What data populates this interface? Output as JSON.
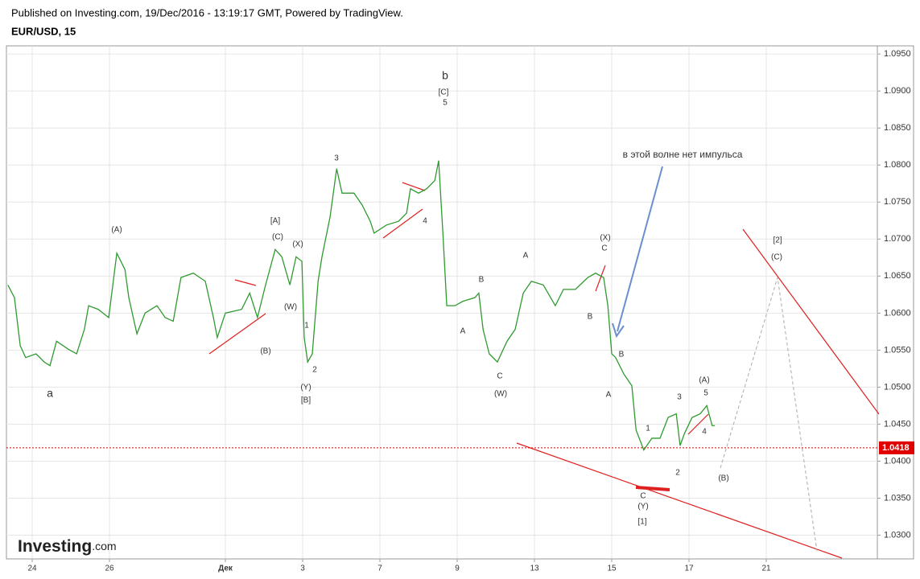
{
  "header": {
    "published": "Published on Investing.com, 19/Dec/2016 - 13:19:17 GMT, Powered by TradingView.",
    "symbol": "EUR/USD, 15"
  },
  "logo": {
    "brand": "Investing",
    "suffix": ".com"
  },
  "chart_data": {
    "type": "line",
    "series": [
      {
        "color": "#2f9a2f",
        "x": [
          -0.63,
          -0.46,
          -0.31,
          -0.17,
          0.1,
          0.31,
          0.46,
          0.63,
          0.94,
          1.15,
          1.35,
          1.46,
          1.71,
          1.98,
          2.19,
          2.4,
          2.5,
          2.71,
          2.92,
          3.23,
          3.44,
          3.65,
          3.85,
          4.17,
          4.48,
          4.69,
          4.79,
          5.0,
          5.42,
          5.63,
          5.83,
          6.04,
          6.29,
          6.46,
          6.67,
          6.83,
          6.98,
          7.04,
          7.13,
          7.25,
          7.4,
          7.5,
          7.71,
          7.88,
          8.02,
          8.33,
          8.54,
          8.75,
          8.85,
          9.17,
          9.48,
          9.69,
          9.79,
          10.0,
          10.21,
          10.42,
          10.52,
          10.63,
          10.73,
          10.94,
          11.15,
          11.46,
          11.56,
          11.67,
          11.83,
          12.04,
          12.29,
          12.5,
          12.71,
          12.92,
          13.23,
          13.54,
          13.75,
          14.06,
          14.38,
          14.58,
          14.79,
          14.9,
          15.0,
          15.1,
          15.31,
          15.52,
          15.63,
          15.83,
          16.04,
          16.25,
          16.46,
          16.67,
          16.77,
          16.88,
          17.08,
          17.29,
          17.46,
          17.6,
          17.67
        ],
        "values": [
          1.0638,
          1.0621,
          1.0556,
          1.054,
          1.0545,
          1.0534,
          1.0529,
          1.0562,
          1.0551,
          1.0545,
          1.0578,
          1.061,
          1.0605,
          1.0594,
          1.0681,
          1.0659,
          1.0621,
          1.0572,
          1.06,
          1.061,
          1.0594,
          1.0589,
          1.0648,
          1.0654,
          1.0643,
          1.0594,
          1.0567,
          1.06,
          1.0605,
          1.0627,
          1.0594,
          1.0638,
          1.0686,
          1.0676,
          1.0638,
          1.0676,
          1.067,
          1.0567,
          1.0534,
          1.0545,
          1.0643,
          1.0676,
          1.073,
          1.0795,
          1.0762,
          1.0762,
          1.0746,
          1.0724,
          1.0708,
          1.0719,
          1.0724,
          1.0735,
          1.0768,
          1.0762,
          1.0768,
          1.0779,
          1.0806,
          1.0708,
          1.061,
          1.061,
          1.0616,
          1.0621,
          1.0627,
          1.0578,
          1.0545,
          1.0534,
          1.0562,
          1.0578,
          1.0627,
          1.0643,
          1.0638,
          1.061,
          1.0632,
          1.0632,
          1.0648,
          1.0654,
          1.0648,
          1.061,
          1.0545,
          1.054,
          1.0518,
          1.0502,
          1.0442,
          1.0415,
          1.0431,
          1.0431,
          1.0459,
          1.0464,
          1.0421,
          1.0437,
          1.0459,
          1.0464,
          1.0475,
          1.0448,
          1.0448
        ]
      }
    ],
    "last_price": 1.0418,
    "last_price_color": "#e00000",
    "xlim": [
      -0.667,
      21.875
    ],
    "ylim": [
      1.0268,
      1.0961
    ],
    "xticks": [
      {
        "value": 0,
        "label": "24"
      },
      {
        "value": 2,
        "label": "26"
      },
      {
        "value": 5,
        "label": "Дек"
      },
      {
        "value": 7,
        "label": "3"
      },
      {
        "value": 9,
        "label": "7"
      },
      {
        "value": 11,
        "label": "9"
      },
      {
        "value": 13,
        "label": "13"
      },
      {
        "value": 15,
        "label": "15"
      },
      {
        "value": 17,
        "label": "17"
      },
      {
        "value": 19,
        "label": "21"
      }
    ],
    "yticks": [
      {
        "value": 1.03,
        "label": "1.0300"
      },
      {
        "value": 1.035,
        "label": "1.0350"
      },
      {
        "value": 1.04,
        "label": "1.0400"
      },
      {
        "value": 1.045,
        "label": "1.0450"
      },
      {
        "value": 1.05,
        "label": "1.0500"
      },
      {
        "value": 1.055,
        "label": "1.0550"
      },
      {
        "value": 1.06,
        "label": "1.0600"
      },
      {
        "value": 1.065,
        "label": "1.0650"
      },
      {
        "value": 1.07,
        "label": "1.0700"
      },
      {
        "value": 1.075,
        "label": "1.0750"
      },
      {
        "value": 1.08,
        "label": "1.0800"
      },
      {
        "value": 1.085,
        "label": "1.0850"
      },
      {
        "value": 1.09,
        "label": "1.0900"
      },
      {
        "value": 1.095,
        "label": "1.0950"
      }
    ],
    "grid": true,
    "annotations": [
      "b",
      "[C]",
      "5",
      "3",
      "4",
      "(A)",
      "[A]",
      "(C)",
      "(X)",
      "(W)",
      "1",
      "2",
      "(B)",
      "(Y)",
      "[B]",
      "a",
      "A",
      "B",
      "A",
      "C",
      "(W)",
      "(X)",
      "C",
      "B",
      "B",
      "A",
      "в этой волне нет импульса",
      "1",
      "2",
      "3",
      "(A)",
      "5",
      "4",
      "(B)",
      "C",
      "(Y)",
      "[1]",
      "[2]",
      "(C)"
    ]
  }
}
